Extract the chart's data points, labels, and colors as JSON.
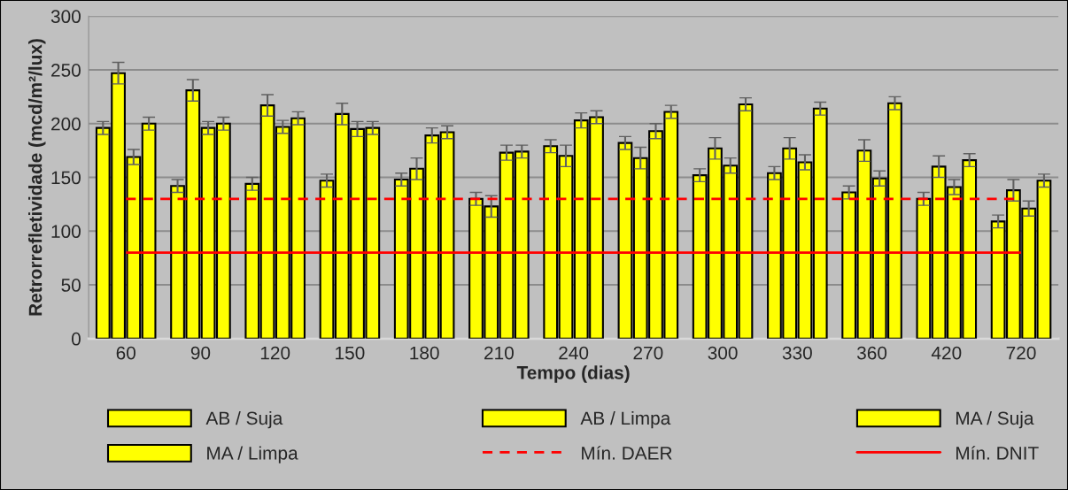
{
  "chart_data": {
    "type": "bar",
    "xlabel": "Tempo (dias)",
    "ylabel": "Retrorrefletividade (mcd/m²/lux)",
    "categories": [
      "60",
      "90",
      "120",
      "150",
      "180",
      "210",
      "240",
      "270",
      "300",
      "330",
      "360",
      "420",
      "720"
    ],
    "series": [
      {
        "name": "AB / Suja",
        "color": "#ffff00",
        "values": [
          196,
          142,
          144,
          147,
          148,
          130,
          179,
          182,
          152,
          154,
          136,
          130,
          109
        ],
        "errors": [
          6,
          6,
          6,
          6,
          6,
          6,
          6,
          6,
          6,
          6,
          6,
          6,
          6
        ]
      },
      {
        "name": "AB / Limpa",
        "color": "#ffff00",
        "values": [
          247,
          231,
          217,
          209,
          158,
          123,
          170,
          168,
          177,
          177,
          175,
          160,
          138
        ],
        "errors": [
          10,
          10,
          10,
          10,
          10,
          10,
          10,
          10,
          10,
          10,
          10,
          10,
          10
        ]
      },
      {
        "name": "MA / Suja",
        "color": "#ffff00",
        "values": [
          169,
          196,
          197,
          195,
          189,
          173,
          203,
          193,
          161,
          164,
          149,
          141,
          121
        ],
        "errors": [
          7,
          6,
          6,
          7,
          7,
          7,
          7,
          7,
          7,
          7,
          7,
          7,
          7
        ]
      },
      {
        "name": "MA / Limpa",
        "color": "#ffff00",
        "values": [
          200,
          200,
          205,
          196,
          192,
          174,
          206,
          211,
          218,
          214,
          219,
          166,
          147
        ],
        "errors": [
          6,
          6,
          6,
          6,
          6,
          6,
          6,
          6,
          6,
          6,
          6,
          6,
          6
        ]
      }
    ],
    "ref_lines": [
      {
        "axis": "y",
        "value": 130,
        "label": "Mín. DAER",
        "color": "#ff0000",
        "line_style": "dashed"
      },
      {
        "axis": "y",
        "value": 80,
        "label": "Mín. DNIT",
        "color": "#ff0000",
        "line_style": "solid"
      }
    ],
    "ylim": [
      0,
      300
    ],
    "yticks": [
      0,
      50,
      100,
      150,
      200,
      250,
      300
    ],
    "grid": "y",
    "legend": "bottom"
  }
}
